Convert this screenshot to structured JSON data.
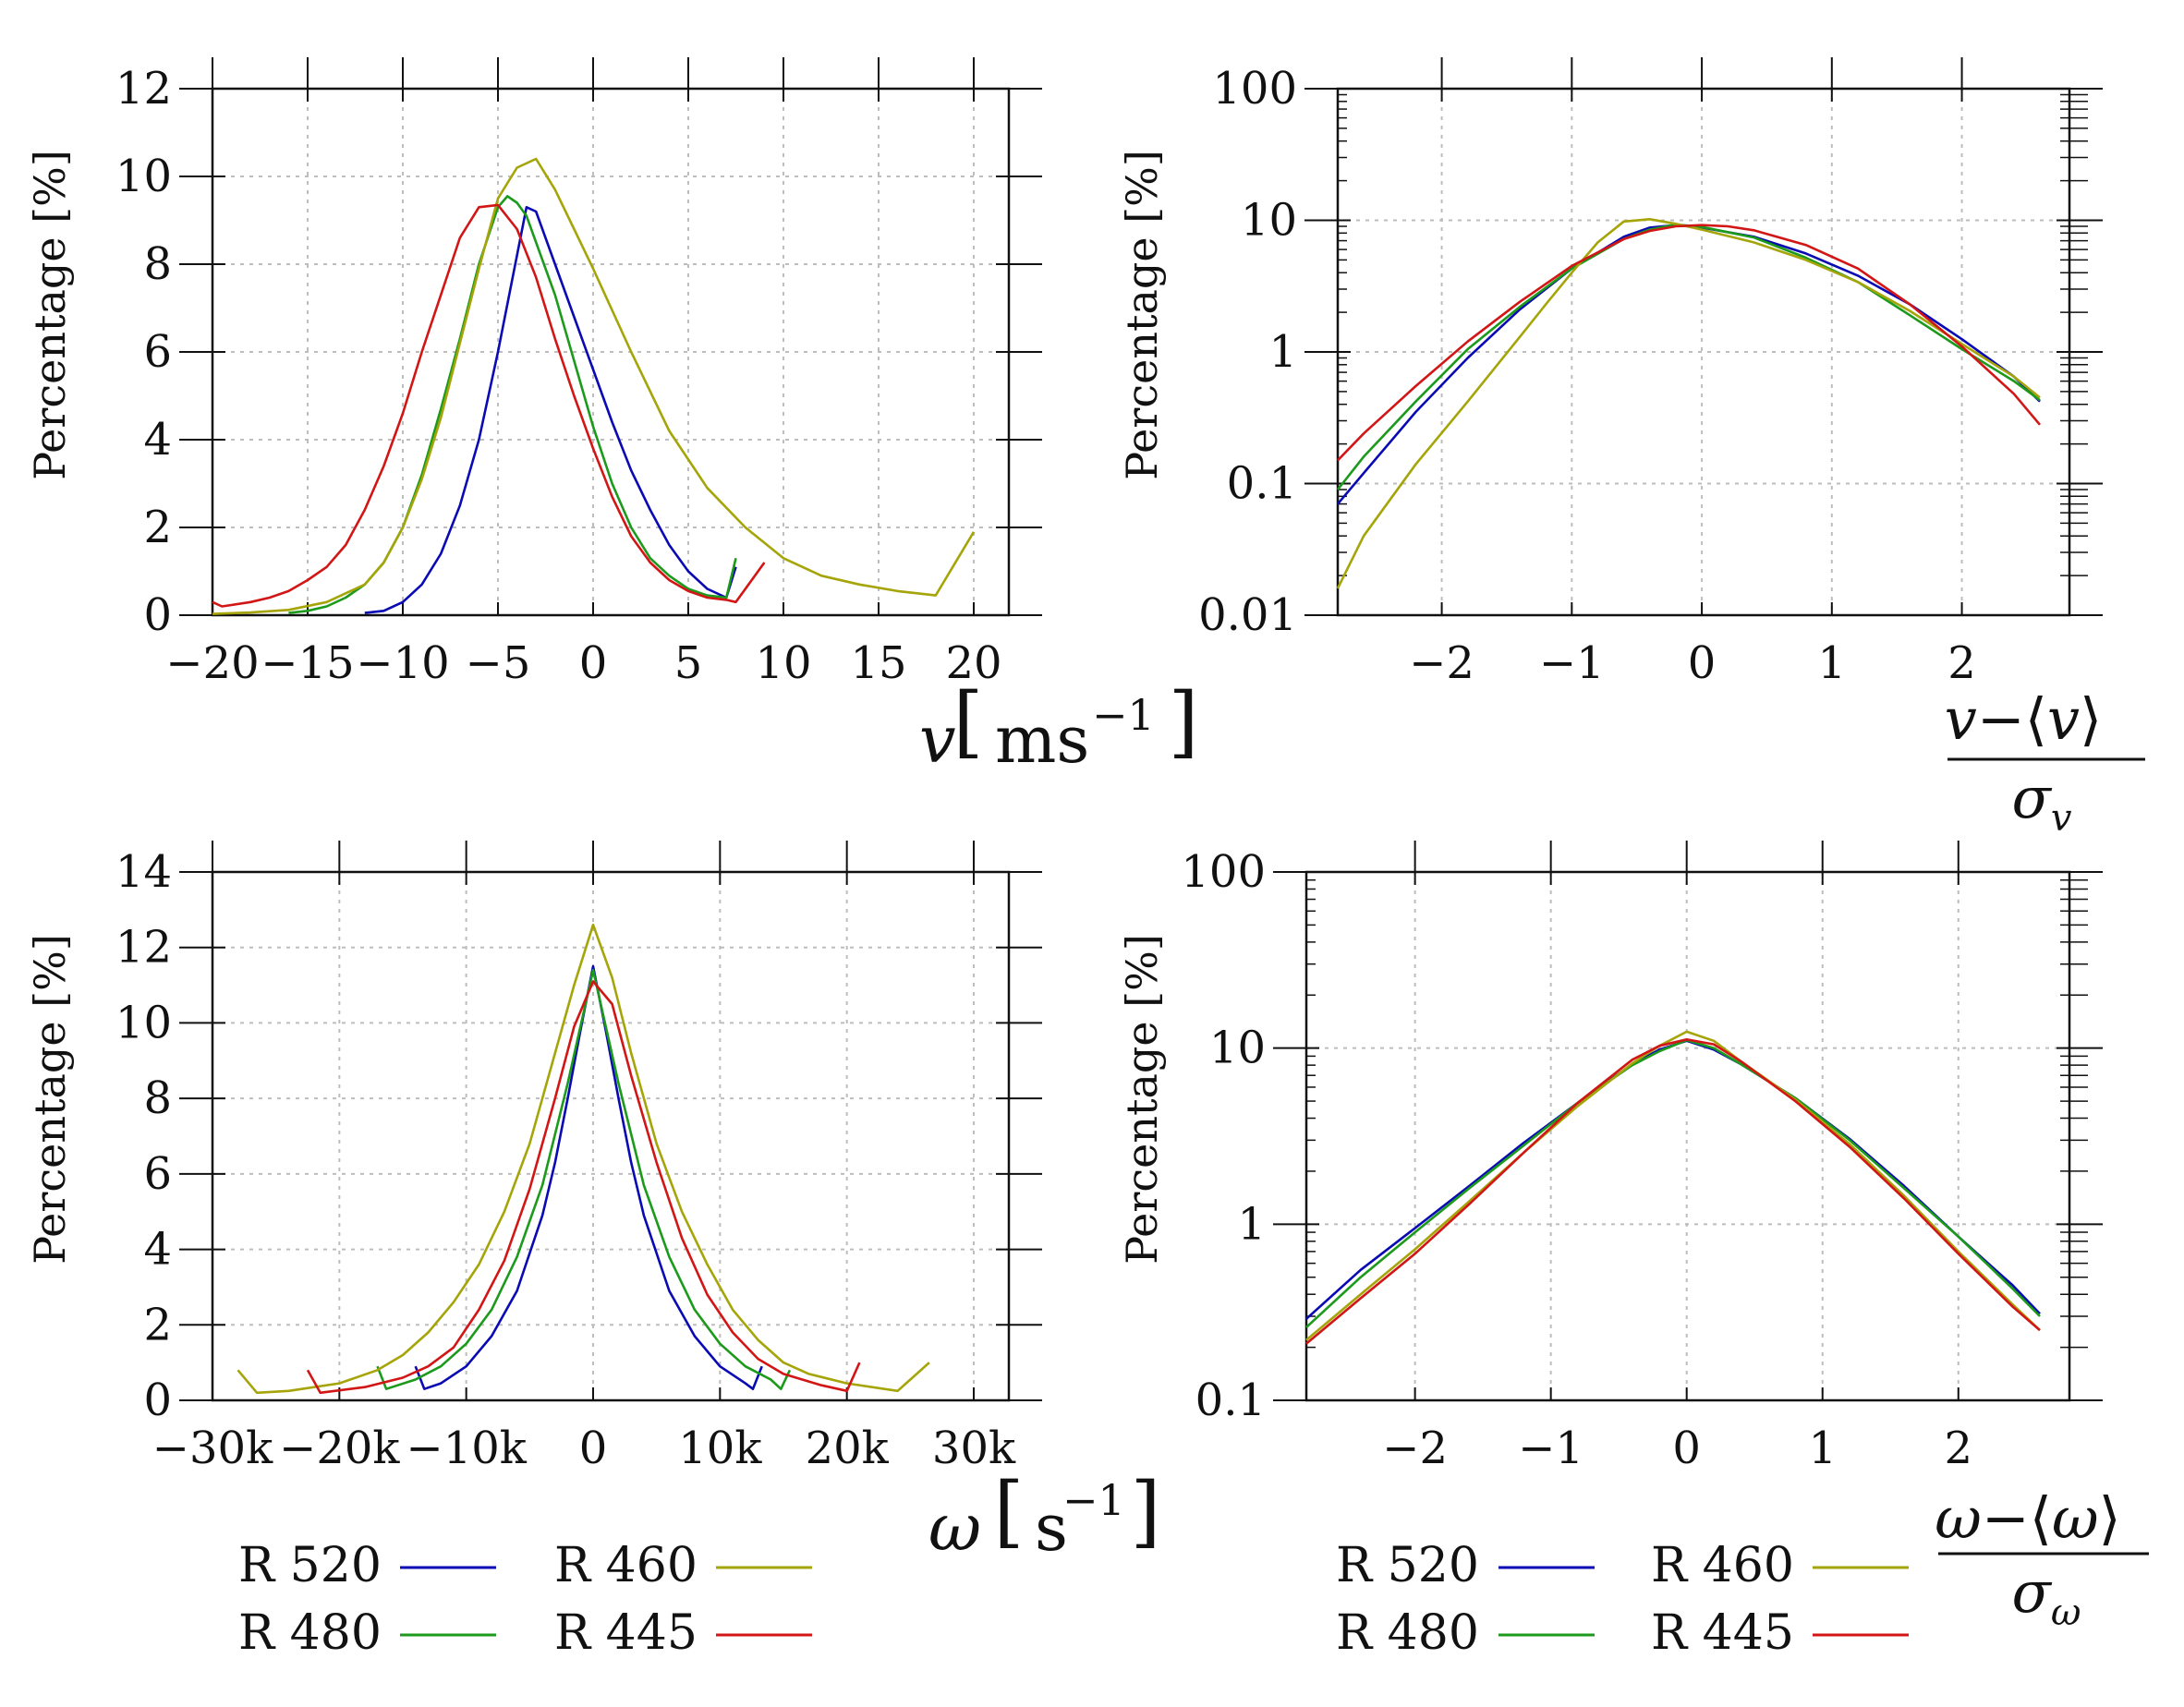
{
  "colors": {
    "R 520": "#0a0ab4",
    "R 480": "#1b9a1b",
    "R 460": "#a5a50a",
    "R 445": "#d21616",
    "grid": "#bdbdbd",
    "axis": "#111111"
  },
  "chart_data": [
    {
      "id": "v-hist",
      "type": "line",
      "title": "",
      "xlabel": {
        "var": "v",
        "unit_base": "ms",
        "unit_exp": "−1"
      },
      "ylabel": "Percentage [%]",
      "xlim": [
        -20,
        20
      ],
      "ylim": [
        0,
        12
      ],
      "yscale": "linear",
      "xticks": [
        -20,
        -15,
        -10,
        -5,
        0,
        5,
        10,
        15,
        20
      ],
      "xtick_labels": [
        "−20",
        "−15",
        "−10",
        "−5",
        "0",
        "5",
        "10",
        "15",
        "20"
      ],
      "yticks": [
        0,
        2,
        4,
        6,
        8,
        10,
        12
      ],
      "ytick_labels": [
        "0",
        "2",
        "4",
        "6",
        "8",
        "10",
        "12"
      ],
      "series": [
        {
          "name": "R 520",
          "x": [
            -12,
            -11,
            -10,
            -9,
            -8,
            -7,
            -6,
            -5,
            -4,
            -3.5,
            -3,
            -2.5,
            -2,
            -1,
            0,
            1,
            2,
            3,
            4,
            5,
            6,
            7,
            7.5
          ],
          "y": [
            0.05,
            0.1,
            0.3,
            0.7,
            1.4,
            2.5,
            4,
            6,
            8.2,
            9.3,
            9.2,
            8.6,
            8,
            6.8,
            5.6,
            4.4,
            3.3,
            2.4,
            1.6,
            1,
            0.6,
            0.4,
            1.1
          ]
        },
        {
          "name": "R 480",
          "x": [
            -16,
            -15,
            -14,
            -13,
            -12,
            -11,
            -10,
            -9,
            -8,
            -7,
            -6,
            -5,
            -4.5,
            -4,
            -3.5,
            -3,
            -2,
            -1,
            0,
            1,
            2,
            3,
            4,
            5,
            6,
            7,
            7.5
          ],
          "y": [
            0.05,
            0.1,
            0.2,
            0.4,
            0.7,
            1.2,
            2,
            3.2,
            4.7,
            6.3,
            8,
            9.3,
            9.55,
            9.4,
            9.1,
            8.5,
            7.3,
            5.8,
            4.3,
            3,
            2,
            1.3,
            0.9,
            0.6,
            0.45,
            0.4,
            1.3
          ]
        },
        {
          "name": "R 460",
          "x": [
            -20,
            -18,
            -16,
            -14,
            -12,
            -11,
            -10,
            -9,
            -8,
            -7,
            -6,
            -5,
            -4,
            -3,
            -2,
            -1,
            0,
            2,
            4,
            6,
            8,
            10,
            12,
            14,
            16,
            18,
            20
          ],
          "y": [
            0.03,
            0.06,
            0.12,
            0.3,
            0.7,
            1.2,
            2,
            3.1,
            4.5,
            6.2,
            7.9,
            9.5,
            10.2,
            10.4,
            9.7,
            8.8,
            7.9,
            6,
            4.2,
            2.9,
            2,
            1.3,
            0.9,
            0.7,
            0.55,
            0.45,
            1.9
          ]
        },
        {
          "name": "R 445",
          "x": [
            -20,
            -19.5,
            -18,
            -17,
            -16,
            -15,
            -14,
            -13,
            -12,
            -11,
            -10,
            -9,
            -8,
            -7,
            -6,
            -5,
            -4,
            -3,
            -2,
            -1,
            0,
            1,
            2,
            3,
            4,
            5,
            6,
            7,
            7.5,
            9
          ],
          "y": [
            0.3,
            0.2,
            0.3,
            0.4,
            0.55,
            0.8,
            1.1,
            1.6,
            2.4,
            3.4,
            4.6,
            6,
            7.3,
            8.6,
            9.3,
            9.35,
            8.8,
            7.7,
            6.3,
            5,
            3.8,
            2.7,
            1.8,
            1.2,
            0.8,
            0.55,
            0.4,
            0.35,
            0.3,
            1.2
          ]
        }
      ]
    },
    {
      "id": "v-norm",
      "type": "line",
      "title": "",
      "xlabel": {
        "num_var": "v",
        "den_var": "v"
      },
      "ylabel": "Percentage [%]",
      "xlim": [
        -2.8,
        2.6
      ],
      "ylim": [
        0.01,
        100
      ],
      "yscale": "log",
      "xticks": [
        -2,
        -1,
        0,
        1,
        2
      ],
      "xtick_labels": [
        "−2",
        "−1",
        "0",
        "1",
        "2"
      ],
      "yticks": [
        0.01,
        0.1,
        1,
        10,
        100
      ],
      "ytick_labels": [
        "0.01",
        "0.1",
        "1",
        "10",
        "100"
      ],
      "series": [
        {
          "name": "R 520",
          "x": [
            -2.8,
            -2.6,
            -2.2,
            -1.8,
            -1.4,
            -1,
            -0.6,
            -0.4,
            -0.2,
            0,
            0.4,
            0.8,
            1.2,
            1.6,
            2,
            2.4,
            2.6
          ],
          "y": [
            0.07,
            0.12,
            0.35,
            0.9,
            2.1,
            4.3,
            7.5,
            8.8,
            9.2,
            8.8,
            7.5,
            5.6,
            3.8,
            2.3,
            1.25,
            0.65,
            0.42
          ]
        },
        {
          "name": "R 480",
          "x": [
            -2.8,
            -2.6,
            -2.2,
            -1.8,
            -1.4,
            -1,
            -0.6,
            -0.4,
            -0.2,
            0,
            0.4,
            0.8,
            1.2,
            1.6,
            2,
            2.4,
            2.6
          ],
          "y": [
            0.09,
            0.16,
            0.42,
            1.05,
            2.2,
            4.3,
            7.2,
            8.5,
            9.3,
            8.9,
            7.4,
            5.2,
            3.4,
            1.9,
            1.05,
            0.6,
            0.43
          ]
        },
        {
          "name": "R 460",
          "x": [
            -2.8,
            -2.6,
            -2.2,
            -1.8,
            -1.4,
            -1.2,
            -1,
            -0.8,
            -0.6,
            -0.4,
            -0.2,
            0,
            0.4,
            0.8,
            1.2,
            1.6,
            2,
            2.4,
            2.6
          ],
          "y": [
            0.016,
            0.04,
            0.14,
            0.42,
            1.3,
            2.3,
            4,
            6.8,
            9.8,
            10.2,
            9.4,
            8.5,
            6.8,
            5,
            3.4,
            2.05,
            1.15,
            0.65,
            0.45
          ]
        },
        {
          "name": "R 445",
          "x": [
            -2.8,
            -2.6,
            -2.2,
            -1.8,
            -1.4,
            -1,
            -0.6,
            -0.4,
            -0.2,
            0,
            0.2,
            0.4,
            0.8,
            1.2,
            1.6,
            2,
            2.4,
            2.6
          ],
          "y": [
            0.15,
            0.24,
            0.55,
            1.2,
            2.4,
            4.5,
            7.2,
            8.3,
            9,
            9.2,
            9,
            8.4,
            6.5,
            4.3,
            2.3,
            1.1,
            0.48,
            0.28
          ]
        }
      ]
    },
    {
      "id": "w-hist",
      "type": "line",
      "title": "",
      "xlabel": {
        "var": "ω",
        "unit_base": "s",
        "unit_exp": "−1"
      },
      "ylabel": "Percentage [%]",
      "xlim": [
        -30000,
        30000
      ],
      "ylim": [
        0,
        14
      ],
      "yscale": "linear",
      "xticks": [
        -30000,
        -20000,
        -10000,
        0,
        10000,
        20000,
        30000
      ],
      "xtick_labels": [
        "−30k",
        "−20k",
        "−10k",
        "0",
        "10k",
        "20k",
        "30k"
      ],
      "yticks": [
        0,
        2,
        4,
        6,
        8,
        10,
        12,
        14
      ],
      "ytick_labels": [
        "0",
        "2",
        "4",
        "6",
        "8",
        "10",
        "12",
        "14"
      ],
      "series": [
        {
          "name": "R 520",
          "x": [
            -14000,
            -13300,
            -12000,
            -10000,
            -8000,
            -6000,
            -4000,
            -3000,
            -2000,
            -1000,
            0,
            1000,
            2000,
            3000,
            4000,
            6000,
            8000,
            10000,
            12000,
            12600,
            13300
          ],
          "y": [
            0.9,
            0.3,
            0.45,
            0.9,
            1.7,
            2.9,
            4.9,
            6.3,
            8,
            9.8,
            11.5,
            9.8,
            8,
            6.3,
            4.9,
            2.9,
            1.7,
            0.9,
            0.45,
            0.3,
            0.9
          ]
        },
        {
          "name": "R 480",
          "x": [
            -17000,
            -16300,
            -14000,
            -12000,
            -10000,
            -8000,
            -6000,
            -4000,
            -2000,
            0,
            2000,
            4000,
            6000,
            8000,
            10000,
            12000,
            14000,
            14800,
            15500
          ],
          "y": [
            0.9,
            0.3,
            0.55,
            0.9,
            1.5,
            2.4,
            3.8,
            5.7,
            8.4,
            11.4,
            8.4,
            5.7,
            3.8,
            2.4,
            1.5,
            0.9,
            0.55,
            0.3,
            0.8
          ]
        },
        {
          "name": "R 460",
          "x": [
            -28000,
            -26500,
            -24000,
            -20000,
            -17000,
            -15000,
            -13000,
            -11000,
            -9000,
            -7000,
            -5000,
            -3000,
            -1500,
            0,
            1500,
            3000,
            5000,
            7000,
            9000,
            11000,
            13000,
            15000,
            17000,
            20000,
            24000,
            26500
          ],
          "y": [
            0.8,
            0.2,
            0.25,
            0.45,
            0.8,
            1.2,
            1.8,
            2.6,
            3.6,
            5,
            6.8,
            9.2,
            11,
            12.6,
            11.2,
            9.2,
            6.8,
            5,
            3.6,
            2.4,
            1.6,
            1,
            0.7,
            0.45,
            0.25,
            1
          ]
        },
        {
          "name": "R 445",
          "x": [
            -22500,
            -21500,
            -18000,
            -15000,
            -13000,
            -11000,
            -9000,
            -7000,
            -5000,
            -3000,
            -1500,
            0,
            1500,
            3000,
            5000,
            7000,
            9000,
            11000,
            13000,
            15000,
            18000,
            20000,
            21000
          ],
          "y": [
            0.8,
            0.2,
            0.35,
            0.6,
            0.9,
            1.4,
            2.4,
            3.7,
            5.6,
            8,
            9.9,
            11.1,
            10.5,
            8.6,
            6.3,
            4.3,
            2.8,
            1.8,
            1.1,
            0.7,
            0.4,
            0.25,
            1
          ]
        }
      ]
    },
    {
      "id": "w-norm",
      "type": "line",
      "title": "",
      "xlabel": {
        "num_var": "ω",
        "den_var": "ω"
      },
      "ylabel": "Percentage [%]",
      "xlim": [
        -2.8,
        2.6
      ],
      "ylim": [
        0.1,
        100
      ],
      "yscale": "log",
      "xticks": [
        -2,
        -1,
        0,
        1,
        2
      ],
      "xtick_labels": [
        "−2",
        "−1",
        "0",
        "1",
        "2"
      ],
      "yticks": [
        0.1,
        1,
        10,
        100
      ],
      "ytick_labels": [
        "0.1",
        "1",
        "10",
        "100"
      ],
      "series": [
        {
          "name": "R 520",
          "x": [
            -2.8,
            -2.4,
            -2,
            -1.6,
            -1.2,
            -0.8,
            -0.4,
            -0.2,
            0,
            0.2,
            0.4,
            0.8,
            1.2,
            1.6,
            2,
            2.4,
            2.6
          ],
          "y": [
            0.29,
            0.55,
            0.95,
            1.65,
            2.9,
            4.9,
            8.1,
            9.8,
            11,
            9.8,
            8.1,
            5.2,
            3.05,
            1.65,
            0.85,
            0.45,
            0.31
          ]
        },
        {
          "name": "R 480",
          "x": [
            -2.8,
            -2.4,
            -2,
            -1.6,
            -1.2,
            -0.8,
            -0.4,
            -0.2,
            0,
            0.2,
            0.4,
            0.8,
            1.2,
            1.6,
            2,
            2.4,
            2.6
          ],
          "y": [
            0.26,
            0.5,
            0.9,
            1.6,
            2.8,
            4.9,
            8,
            9.6,
            11.1,
            10,
            8.1,
            5.2,
            3,
            1.6,
            0.85,
            0.43,
            0.3
          ]
        },
        {
          "name": "R 460",
          "x": [
            -2.8,
            -2.4,
            -2,
            -1.6,
            -1.2,
            -0.8,
            -0.4,
            -0.2,
            0,
            0.2,
            0.4,
            0.8,
            1.2,
            1.6,
            2,
            2.4,
            2.6
          ],
          "y": [
            0.22,
            0.4,
            0.72,
            1.35,
            2.55,
            4.7,
            8.2,
            10.3,
            12.4,
            11,
            8.4,
            5.1,
            2.85,
            1.45,
            0.7,
            0.35,
            0.25
          ]
        },
        {
          "name": "R 445",
          "x": [
            -2.8,
            -2.4,
            -2,
            -1.6,
            -1.2,
            -0.8,
            -0.4,
            -0.2,
            0,
            0.2,
            0.4,
            0.8,
            1.2,
            1.6,
            2,
            2.4,
            2.6
          ],
          "y": [
            0.21,
            0.38,
            0.68,
            1.3,
            2.55,
            4.9,
            8.6,
            10.3,
            11.2,
            10.5,
            8.4,
            5,
            2.75,
            1.4,
            0.68,
            0.34,
            0.25
          ]
        }
      ]
    }
  ],
  "legends": [
    {
      "entries": [
        "R 520",
        "R 480",
        "R 460",
        "R 445"
      ]
    },
    {
      "entries": [
        "R 520",
        "R 480",
        "R 460",
        "R 445"
      ]
    }
  ]
}
